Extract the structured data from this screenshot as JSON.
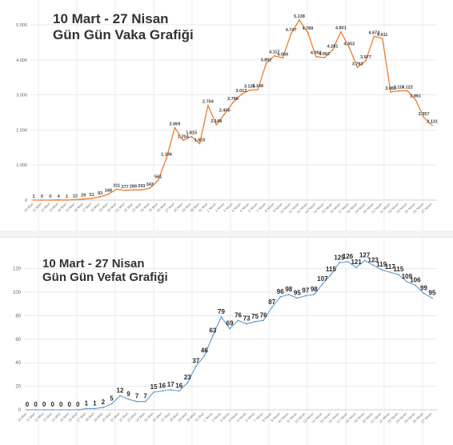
{
  "charts": {
    "cases": {
      "title_line1": "10 Mart - 27 Nisan",
      "title_line2": "Gün Gün Vaka Grafiği"
    },
    "deaths": {
      "title_line1": "10 Mart - 27 Nisan",
      "title_line2": "Gün Gün Vefat Grafiği"
    }
  },
  "chart_data": [
    {
      "type": "line",
      "title": "10 Mart - 27 Nisan Gün Gün Vaka Grafiği",
      "xlabel": "",
      "ylabel": "",
      "color": "#ed7d31",
      "ylim": [
        0,
        5000
      ],
      "yticks": [
        "0",
        "1.000",
        "2.000",
        "3.000",
        "4.000",
        "5.000"
      ],
      "grid": true,
      "categories": [
        "10 Mart",
        "11 Mart",
        "12 Mart",
        "13 Mart",
        "14 Mart",
        "15 Mart",
        "16 Mart",
        "17 Mart",
        "18 Mart",
        "19 Mart",
        "20 Mart",
        "21 Mart",
        "22 Mart",
        "23 Mart",
        "24 Mart",
        "25 Mart",
        "26 Mart",
        "27 Mart",
        "28 Mart",
        "29 Mart",
        "30 Mart",
        "31 Mart",
        "1 Nisan",
        "2 Nisan",
        "3 Nisan",
        "4 Nisan",
        "5 Nisan",
        "6 Nisan",
        "7 Nisan",
        "8 Nisan",
        "9 Nisan",
        "10 Nisan",
        "11 Nisan",
        "12 Nisan",
        "13 Nisan",
        "14 Nisan",
        "15 Nisan",
        "16 Nisan",
        "17 Nisan",
        "18 Nisan",
        "19 Nisan",
        "20 Nisan",
        "21 Nisan",
        "22 Nisan",
        "23 Nisan",
        "24 Nisan",
        "25 Nisan",
        "26 Nisan",
        "27 Nisan"
      ],
      "values": [
        1,
        0,
        0,
        4,
        1,
        12,
        29,
        51,
        93,
        168,
        311,
        277,
        289,
        293,
        343,
        561,
        1196,
        2069,
        1704,
        1815,
        1610,
        2704,
        2148,
        2456,
        2786,
        3013,
        3135,
        3148,
        3892,
        4117,
        4056,
        4747,
        5138,
        4789,
        4093,
        4062,
        4281,
        4801,
        4353,
        3783,
        3977,
        4674,
        4611,
        3083,
        3116,
        3122,
        2861,
        2357,
        2131
      ],
      "labels": [
        "1",
        "0",
        "0",
        "4",
        "1",
        "12",
        "29",
        "51",
        "93",
        "168",
        "311",
        "277",
        "289",
        "293",
        "343",
        "561",
        "1.196",
        "2.069",
        "1.704",
        "1.815",
        "1.610",
        "2.704",
        "2.148",
        "2.456",
        "2.786",
        "3.013",
        "3.135",
        "3.148",
        "3.892",
        "4.117",
        "4.056",
        "4.747",
        "5.138",
        "4.789",
        "4.093",
        "4.062",
        "4.281",
        "4.801",
        "4.353",
        "3.783",
        "3.977",
        "4.674",
        "4.611",
        "3.083",
        "3.116",
        "3.122",
        "2.861",
        "2.357",
        "2.131"
      ]
    },
    {
      "type": "line",
      "title": "10 Mart - 27 Nisan Gün Gün Vefat Grafiği",
      "xlabel": "",
      "ylabel": "",
      "color": "#5b9bd5",
      "ylim": [
        0,
        130
      ],
      "yticks": [
        "0",
        "20",
        "40",
        "60",
        "80",
        "100",
        "120"
      ],
      "grid": true,
      "categories": [
        "10 Mart",
        "11 Mart",
        "12 Mart",
        "13 Mart",
        "14 Mart",
        "15 Mart",
        "16 Mart",
        "17 Mart",
        "18 Mart",
        "19 Mart",
        "20 Mart",
        "21 Mart",
        "22 Mart",
        "23 Mart",
        "24 Mart",
        "25 Mart",
        "26 Mart",
        "27 Mart",
        "28 Mart",
        "29 Mart",
        "30 Mart",
        "31 Mart",
        "1 Nisan",
        "2 Nisan",
        "3 Nisan",
        "4 Nisan",
        "5 Nisan",
        "6 Nisan",
        "7 Nisan",
        "8 Nisan",
        "9 Nisan",
        "10 Nisan",
        "11 Nisan",
        "12 Nisan",
        "13 Nisan",
        "14 Nisan",
        "15 Nisan",
        "16 Nisan",
        "17 Nisan",
        "18 Nisan",
        "19 Nisan",
        "20 Nisan",
        "21 Nisan",
        "22 Nisan",
        "23 Nisan",
        "24 Nisan",
        "25 Nisan",
        "26 Nisan",
        "27 Nisan"
      ],
      "values": [
        0,
        0,
        0,
        0,
        0,
        0,
        0,
        1,
        1,
        2,
        5,
        12,
        9,
        7,
        7,
        15,
        16,
        17,
        16,
        23,
        37,
        46,
        63,
        79,
        69,
        76,
        73,
        75,
        76,
        87,
        96,
        98,
        95,
        97,
        98,
        107,
        115,
        125,
        126,
        121,
        127,
        123,
        119,
        117,
        115,
        109,
        106,
        99,
        95
      ],
      "labels": [
        "0",
        "0",
        "0",
        "0",
        "0",
        "0",
        "0",
        "1",
        "1",
        "2",
        "5",
        "12",
        "9",
        "7",
        "7",
        "15",
        "16",
        "17",
        "16",
        "23",
        "37",
        "46",
        "63",
        "79",
        "69",
        "76",
        "73",
        "75",
        "76",
        "87",
        "96",
        "98",
        "95",
        "97",
        "98",
        "107",
        "115",
        "125",
        "126",
        "121",
        "127",
        "123",
        "119",
        "117",
        "115",
        "109",
        "106",
        "99",
        "95"
      ]
    }
  ]
}
